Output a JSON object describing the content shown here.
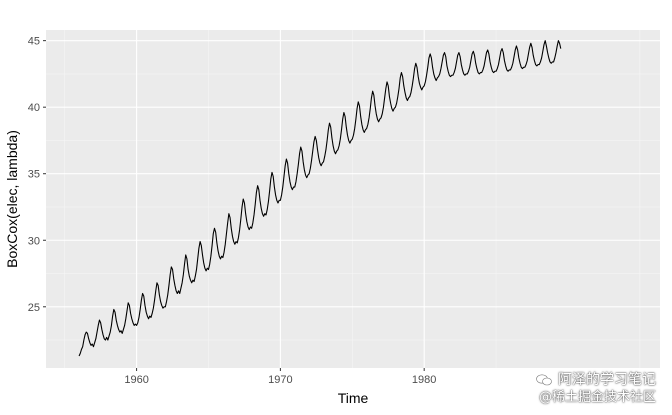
{
  "chart_data": {
    "type": "line",
    "xlabel": "Time",
    "ylabel": "BoxCox(elec, lambda)",
    "xlim": [
      1953.7,
      1996.4
    ],
    "ylim": [
      20.4,
      45.8
    ],
    "x_ticks": [
      1960,
      1970,
      1980
    ],
    "x_tick_labels": [
      "1960",
      "1970",
      "1980"
    ],
    "y_ticks": [
      25,
      30,
      35,
      40,
      45
    ],
    "y_tick_labels": [
      "25",
      "30",
      "35",
      "40",
      "45"
    ],
    "grid": true,
    "start": 1956.0,
    "frequency": 12,
    "series": [
      {
        "values": [
          21.3,
          21.5,
          21.8,
          22.0,
          22.5,
          22.9,
          23.1,
          23.0,
          22.6,
          22.3,
          22.1,
          22.2,
          22.0,
          22.3,
          22.6,
          23.1,
          23.6,
          24.0,
          23.8,
          23.3,
          22.9,
          22.6,
          22.5,
          22.7,
          22.5,
          22.8,
          23.1,
          23.6,
          24.3,
          24.8,
          24.6,
          24.0,
          23.6,
          23.3,
          23.1,
          23.2,
          23.0,
          23.3,
          23.6,
          24.1,
          24.7,
          25.3,
          25.1,
          24.5,
          24.1,
          23.8,
          23.6,
          23.7,
          23.6,
          23.8,
          24.2,
          24.8,
          25.5,
          26.0,
          25.8,
          25.1,
          24.6,
          24.3,
          24.1,
          24.3,
          24.2,
          24.5,
          24.9,
          25.5,
          26.2,
          26.8,
          26.6,
          25.9,
          25.4,
          25.1,
          24.9,
          25.0,
          25.0,
          25.4,
          25.9,
          26.6,
          27.4,
          28.0,
          27.8,
          27.1,
          26.6,
          26.2,
          26.0,
          26.2,
          26.0,
          26.4,
          26.8,
          27.4,
          28.2,
          28.9,
          28.6,
          27.8,
          27.3,
          27.0,
          26.8,
          27.0,
          26.9,
          27.3,
          27.8,
          28.6,
          29.4,
          29.9,
          29.6,
          28.9,
          28.3,
          27.9,
          27.7,
          27.9,
          27.8,
          28.2,
          28.8,
          29.6,
          30.5,
          30.9,
          30.6,
          29.8,
          29.2,
          28.8,
          28.6,
          28.8,
          28.7,
          29.1,
          29.7,
          30.5,
          31.3,
          32.0,
          31.7,
          30.9,
          30.3,
          29.9,
          29.7,
          29.9,
          29.8,
          30.2,
          30.8,
          31.6,
          32.5,
          33.1,
          32.8,
          32.0,
          31.4,
          31.0,
          30.8,
          31.0,
          30.9,
          31.3,
          31.9,
          32.7,
          33.6,
          34.1,
          33.8,
          33.0,
          32.4,
          32.0,
          31.8,
          32.0,
          31.9,
          32.3,
          32.9,
          33.7,
          34.6,
          35.1,
          34.8,
          34.0,
          33.4,
          33.0,
          32.8,
          33.0,
          33.0,
          33.4,
          34.0,
          34.8,
          35.6,
          36.1,
          35.8,
          35.0,
          34.4,
          34.0,
          33.8,
          34.0,
          34.0,
          34.4,
          35.0,
          35.7,
          36.5,
          37.0,
          36.7,
          35.9,
          35.3,
          34.9,
          34.7,
          34.9,
          35.0,
          35.4,
          36.0,
          36.7,
          37.4,
          37.8,
          37.5,
          36.8,
          36.2,
          35.8,
          35.6,
          35.8,
          35.9,
          36.3,
          36.8,
          37.5,
          38.3,
          38.8,
          38.5,
          37.7,
          37.1,
          36.7,
          36.5,
          36.7,
          36.8,
          37.1,
          37.6,
          38.3,
          39.1,
          39.6,
          39.3,
          38.5,
          37.9,
          37.5,
          37.3,
          37.5,
          37.6,
          37.9,
          38.4,
          39.1,
          39.9,
          40.4,
          40.1,
          39.3,
          38.7,
          38.3,
          38.1,
          38.3,
          38.4,
          38.7,
          39.2,
          39.9,
          40.7,
          41.2,
          40.9,
          40.1,
          39.5,
          39.1,
          38.9,
          39.1,
          39.2,
          39.5,
          40.0,
          40.7,
          41.4,
          41.9,
          41.6,
          40.8,
          40.3,
          39.9,
          39.7,
          39.9,
          40.0,
          40.3,
          40.8,
          41.4,
          42.2,
          42.6,
          42.3,
          41.6,
          41.1,
          40.7,
          40.5,
          40.7,
          40.8,
          41.1,
          41.6,
          42.2,
          42.9,
          43.3,
          43.0,
          42.3,
          41.8,
          41.5,
          41.3,
          41.5,
          41.6,
          41.9,
          42.4,
          43.0,
          43.7,
          44.0,
          43.7,
          43.0,
          42.5,
          42.2,
          42.0,
          42.2,
          42.3,
          42.5,
          42.9,
          43.4,
          43.9,
          44.1,
          43.8,
          43.1,
          42.7,
          42.4,
          42.3,
          42.4,
          42.4,
          42.6,
          42.9,
          43.4,
          43.9,
          44.1,
          43.8,
          43.2,
          42.8,
          42.5,
          42.4,
          42.5,
          42.5,
          42.7,
          43.0,
          43.5,
          44.0,
          44.2,
          43.9,
          43.3,
          42.9,
          42.6,
          42.5,
          42.6,
          42.6,
          42.8,
          43.1,
          43.6,
          44.1,
          44.3,
          44.0,
          43.4,
          43.0,
          42.7,
          42.6,
          42.7,
          42.7,
          42.9,
          43.2,
          43.7,
          44.2,
          44.4,
          44.1,
          43.5,
          43.1,
          42.8,
          42.7,
          42.8,
          42.8,
          43.0,
          43.3,
          43.8,
          44.3,
          44.6,
          44.3,
          43.7,
          43.3,
          43.0,
          42.9,
          43.0,
          43.0,
          43.2,
          43.5,
          44.0,
          44.5,
          44.8,
          44.5,
          43.9,
          43.5,
          43.2,
          43.1,
          43.2,
          43.2,
          43.4,
          43.7,
          44.2,
          44.7,
          45.0,
          44.6,
          44.1,
          43.7,
          43.4,
          43.3,
          43.4,
          43.4,
          43.7,
          44.1,
          44.6,
          45.0,
          44.8,
          44.4
        ]
      }
    ]
  },
  "colors": {
    "panel_background": "#ebebeb",
    "grid_major": "#ffffff",
    "grid_minor": "#f5f5f5",
    "line": "#000000",
    "tick_label": "#4d4d4d"
  },
  "watermark": {
    "line1": "阿泽的学习笔记",
    "line2": "@稀土掘金技术社区",
    "icon": "wechat-icon"
  }
}
